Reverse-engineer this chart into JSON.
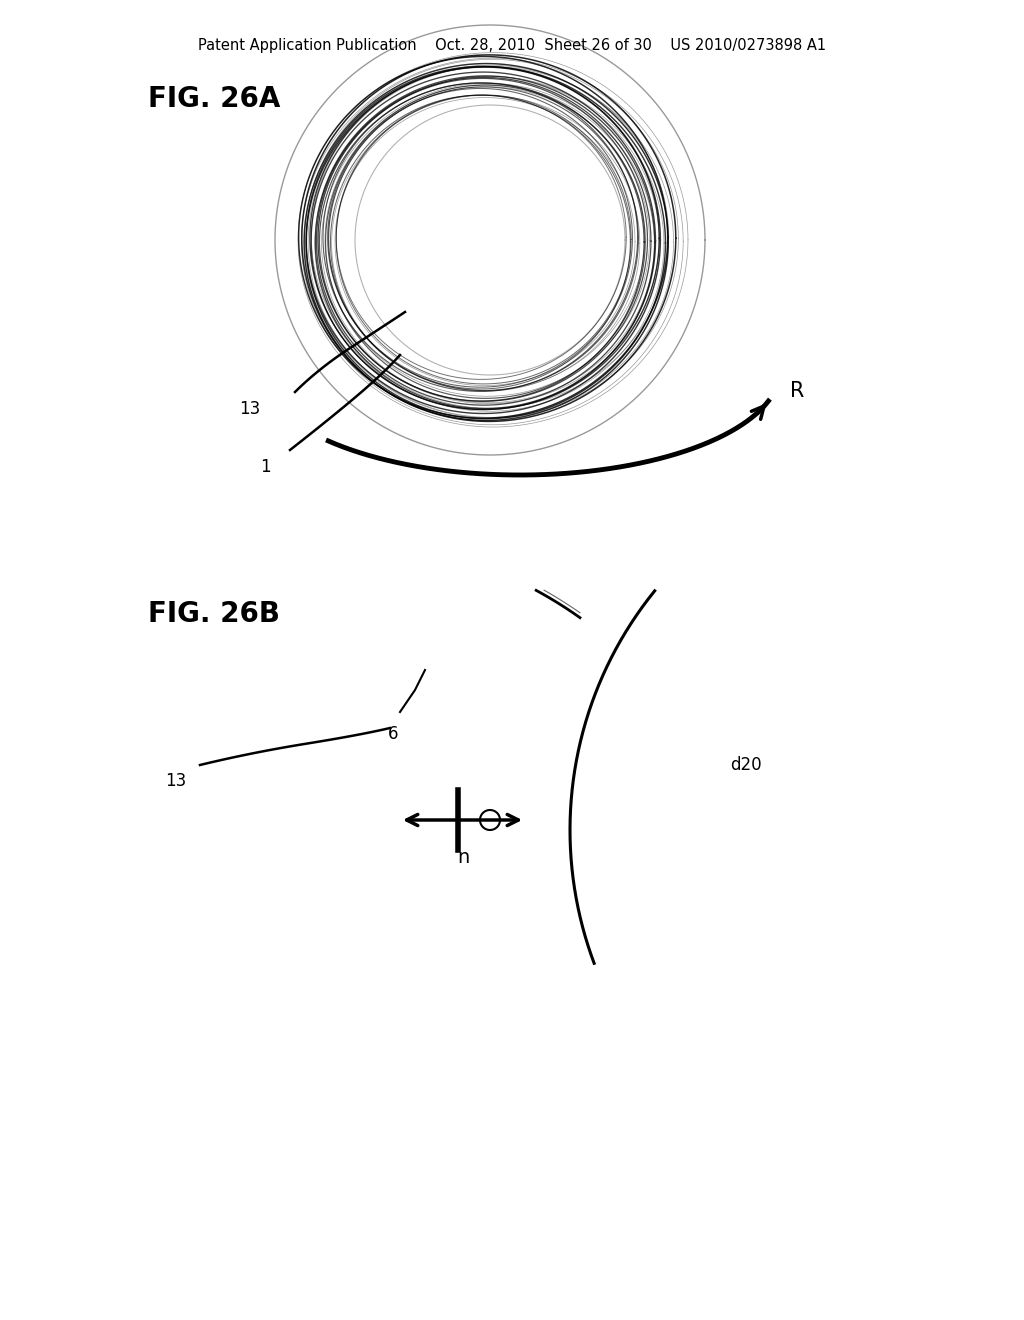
{
  "bg_color": "#ffffff",
  "header_text": "Patent Application Publication    Oct. 28, 2010  Sheet 26 of 30    US 2010/0273898 A1",
  "header_fontsize": 10.5,
  "fig26a_label": "FIG. 26A",
  "fig26b_label": "FIG. 26B",
  "label_fontsize": 20,
  "fig_label_fontweight": "bold",
  "label_13_a": "13",
  "label_1": "1",
  "label_R": "R",
  "label_13_b": "13",
  "label_6": "6",
  "label_d20": "d20",
  "label_n": "n"
}
